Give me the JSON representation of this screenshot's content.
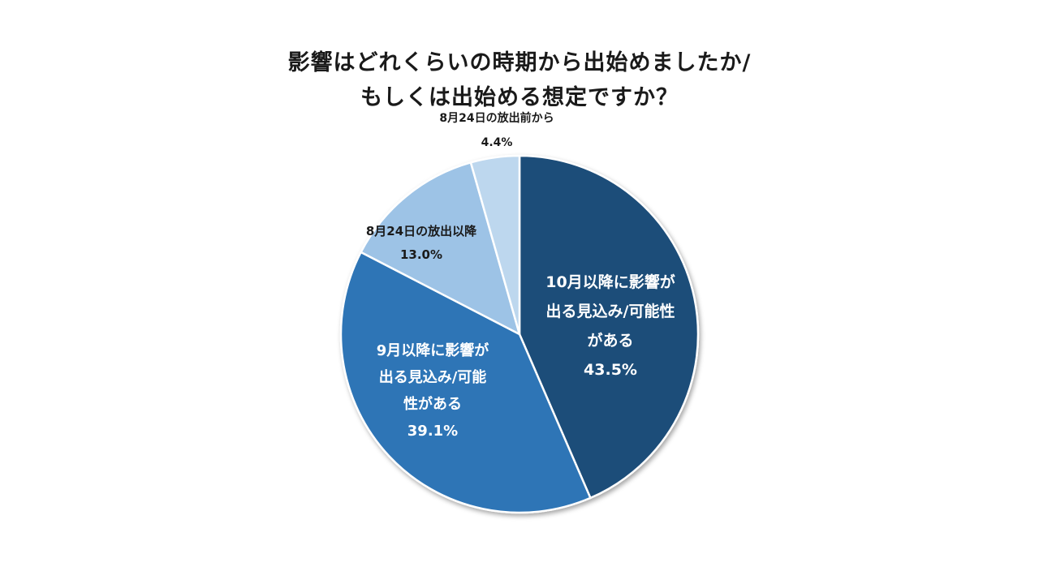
{
  "chart_data": {
    "type": "pie",
    "title": "影響はどれくらいの時期から出始めましたか/\nもしくは出始める想定ですか？",
    "title_lines": [
      "影響はどれくらいの時期から出始めましたか/",
      "もしくは出始める想定ですか？"
    ],
    "start_angle": "12 o'clock, clockwise",
    "slices": [
      {
        "label": "10月以降に影響が出る見込み/可能性がある",
        "label_lines": [
          "10月以降に影響が",
          "出る見込み/可能性",
          "がある"
        ],
        "value": 43.5,
        "value_text": "43.5%",
        "color": "#1f4e79",
        "label_placement": "inside",
        "text_color": "#ffffff"
      },
      {
        "label": "9月以降に影響が出る見込み/可能性がある",
        "label_lines": [
          "9月以降に影響が",
          "出る見込み/可能",
          "性がある"
        ],
        "value": 39.1,
        "value_text": "39.1%",
        "color": "#2e75b6",
        "label_placement": "inside",
        "text_color": "#ffffff"
      },
      {
        "label": "8月24日の放出以降",
        "label_lines": [
          "8月24日の放出以降"
        ],
        "value": 13.0,
        "value_text": "13.0%",
        "color": "#9dc3e6",
        "label_placement": "inside",
        "text_color": "#1a1a1a"
      },
      {
        "label": "8月24日の放出前から",
        "label_lines": [
          "8月24日の放出前から"
        ],
        "value": 4.4,
        "value_text": "4.4%",
        "color": "#bdd7ee",
        "label_placement": "outside",
        "text_color": "#1a1a1a"
      }
    ],
    "legend": "none"
  }
}
